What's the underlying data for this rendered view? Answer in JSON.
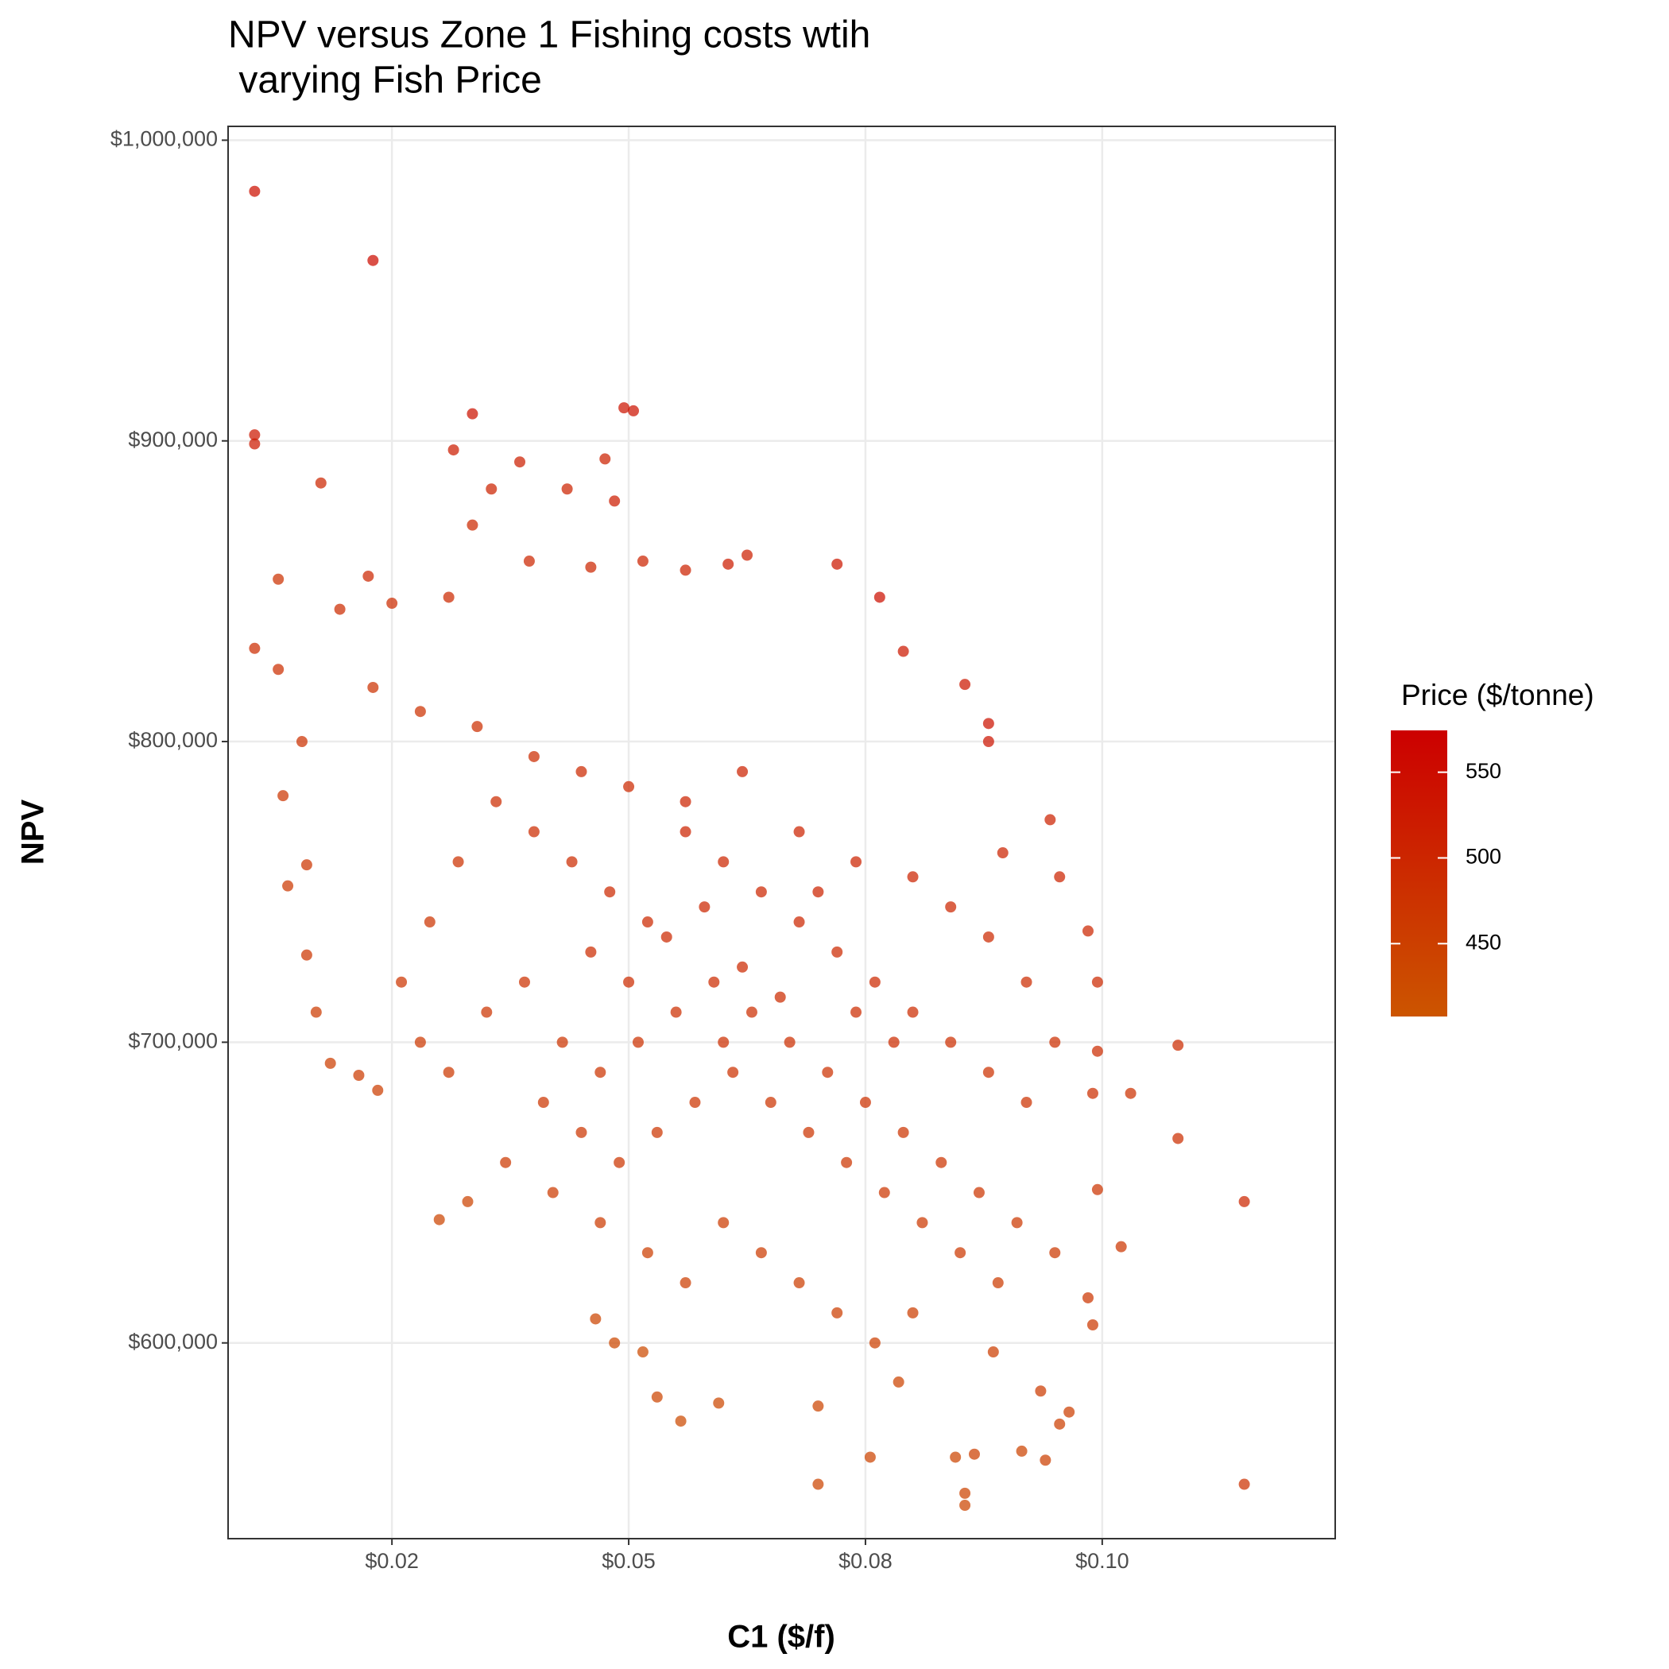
{
  "chart_data": {
    "type": "scatter",
    "title": [
      "NPV versus Zone 1 Fishing costs wtih",
      " varying Fish Price"
    ],
    "x_label": "C1 ($/f)",
    "y_label": "NPV",
    "legend_title": "Price ($/tonne)",
    "xlim": [
      0.0077,
      0.1246
    ],
    "ylim": [
      534900,
      1004600
    ],
    "xticks": [
      {
        "value": 0.025,
        "label": "$0.02"
      },
      {
        "value": 0.05,
        "label": "$0.05"
      },
      {
        "value": 0.075,
        "label": "$0.08"
      },
      {
        "value": 0.1,
        "label": "$0.10"
      }
    ],
    "yticks": [
      {
        "value": 600000,
        "label": "$600,000"
      },
      {
        "value": 700000,
        "label": "$700,000"
      },
      {
        "value": 800000,
        "label": "$800,000"
      },
      {
        "value": 900000,
        "label": "$900,000"
      },
      {
        "value": 1000000,
        "label": "$1,000,000"
      }
    ],
    "color_lim": [
      407.5,
      574.4
    ],
    "color_ticks": [
      450,
      500,
      550
    ],
    "low_color": "#cc5500",
    "high_color": "#cc0000",
    "grid": true,
    "x": [
      0.0105,
      0.023,
      0.0105,
      0.0105,
      0.0335,
      0.0495,
      0.0505,
      0.0315,
      0.0475,
      0.0385,
      0.0175,
      0.0355,
      0.0435,
      0.0485,
      0.0335,
      0.0225,
      0.013,
      0.0105,
      0.013,
      0.0155,
      0.0135,
      0.016,
      0.014,
      0.016,
      0.017,
      0.0185,
      0.0215,
      0.0235,
      0.03,
      0.033,
      0.0465,
      0.0485,
      0.0515,
      0.053,
      0.0555,
      0.0595,
      0.07,
      0.07,
      0.0755,
      0.0785,
      0.0845,
      0.0855,
      0.0855,
      0.0865,
      0.0915,
      0.094,
      0.0955,
      0.0965,
      0.0885,
      0.0935,
      0.099,
      0.0985,
      0.0995,
      0.099,
      0.0995,
      0.0995,
      0.0985,
      0.0945,
      0.0955,
      0.0895,
      0.088,
      0.088,
      0.0855,
      0.079,
      0.0765,
      0.072,
      0.0625,
      0.0605,
      0.056,
      0.0515,
      0.046,
      0.0395,
      0.031,
      0.025,
      0.0195,
      0.023,
      0.028,
      0.034,
      0.04,
      0.045,
      0.05,
      0.056,
      0.062,
      0.068,
      0.074,
      0.08,
      0.084,
      0.088,
      0.092,
      0.095,
      0.092,
      0.088,
      0.084,
      0.08,
      0.076,
      0.072,
      0.068,
      0.064,
      0.06,
      0.056,
      0.052,
      0.048,
      0.044,
      0.04,
      0.036,
      0.032,
      0.029,
      0.026,
      0.028,
      0.031,
      0.035,
      0.039,
      0.043,
      0.047,
      0.051,
      0.055,
      0.059,
      0.063,
      0.067,
      0.071,
      0.075,
      0.079,
      0.083,
      0.087,
      0.091,
      0.095,
      0.089,
      0.085,
      0.081,
      0.077,
      0.073,
      0.069,
      0.065,
      0.061,
      0.057,
      0.053,
      0.049,
      0.045,
      0.041,
      0.037,
      0.042,
      0.047,
      0.052,
      0.056,
      0.06,
      0.064,
      0.068,
      0.072,
      0.076,
      0.08,
      0.054,
      0.058,
      0.062,
      0.066,
      0.06,
      0.05,
      0.046,
      0.07,
      0.074,
      0.078,
      0.115,
      0.115,
      0.108,
      0.108,
      0.103,
      0.102
    ],
    "values": [
      983000,
      960000,
      902000,
      899000,
      909000,
      911000,
      910000,
      897000,
      894000,
      893000,
      886000,
      884000,
      884000,
      880000,
      872000,
      855000,
      854000,
      831000,
      824000,
      800000,
      782000,
      759000,
      752000,
      729000,
      710000,
      693000,
      689000,
      684000,
      641000,
      647000,
      608000,
      600000,
      597000,
      582000,
      574000,
      580000,
      553000,
      579000,
      562000,
      587000,
      562000,
      550000,
      546000,
      563000,
      564000,
      561000,
      573000,
      577000,
      597000,
      584000,
      606000,
      615000,
      651000,
      683000,
      697000,
      720000,
      737000,
      774000,
      755000,
      763000,
      806000,
      800000,
      819000,
      830000,
      848000,
      859000,
      862000,
      859000,
      857000,
      860000,
      858000,
      860000,
      848000,
      846000,
      844000,
      818000,
      810000,
      805000,
      795000,
      790000,
      785000,
      780000,
      790000,
      770000,
      760000,
      755000,
      745000,
      735000,
      720000,
      700000,
      680000,
      690000,
      700000,
      710000,
      720000,
      730000,
      740000,
      750000,
      760000,
      770000,
      740000,
      750000,
      760000,
      770000,
      780000,
      760000,
      740000,
      720000,
      700000,
      690000,
      710000,
      720000,
      700000,
      690000,
      700000,
      710000,
      720000,
      710000,
      700000,
      690000,
      680000,
      670000,
      660000,
      650000,
      640000,
      630000,
      620000,
      630000,
      640000,
      650000,
      660000,
      670000,
      680000,
      690000,
      680000,
      670000,
      660000,
      670000,
      680000,
      660000,
      650000,
      640000,
      630000,
      620000,
      640000,
      630000,
      620000,
      610000,
      600000,
      610000,
      735000,
      745000,
      725000,
      715000,
      700000,
      720000,
      730000,
      750000,
      710000,
      700000,
      647000,
      553000,
      699000,
      668000,
      683000,
      632000
    ],
    "price": [
      545,
      548,
      530,
      525,
      540,
      535,
      540,
      520,
      510,
      515,
      500,
      505,
      505,
      520,
      495,
      500,
      480,
      490,
      485,
      480,
      470,
      470,
      465,
      470,
      460,
      455,
      460,
      455,
      440,
      445,
      440,
      435,
      430,
      440,
      430,
      435,
      440,
      440,
      445,
      445,
      440,
      445,
      440,
      450,
      445,
      450,
      450,
      455,
      455,
      460,
      465,
      470,
      475,
      485,
      490,
      495,
      500,
      510,
      505,
      505,
      540,
      535,
      530,
      530,
      545,
      530,
      515,
      520,
      510,
      505,
      500,
      500,
      495,
      490,
      490,
      480,
      480,
      485,
      490,
      495,
      495,
      505,
      510,
      505,
      505,
      505,
      500,
      495,
      490,
      485,
      480,
      480,
      485,
      490,
      495,
      495,
      500,
      500,
      500,
      505,
      495,
      495,
      490,
      490,
      490,
      480,
      475,
      470,
      465,
      465,
      475,
      480,
      475,
      475,
      480,
      485,
      490,
      485,
      485,
      480,
      480,
      475,
      475,
      470,
      465,
      465,
      460,
      465,
      465,
      470,
      470,
      475,
      475,
      480,
      475,
      470,
      470,
      470,
      470,
      465,
      460,
      460,
      455,
      455,
      460,
      460,
      455,
      455,
      450,
      455,
      495,
      500,
      495,
      490,
      485,
      490,
      490,
      505,
      490,
      490,
      500,
      480,
      490,
      485,
      480,
      470
    ]
  }
}
